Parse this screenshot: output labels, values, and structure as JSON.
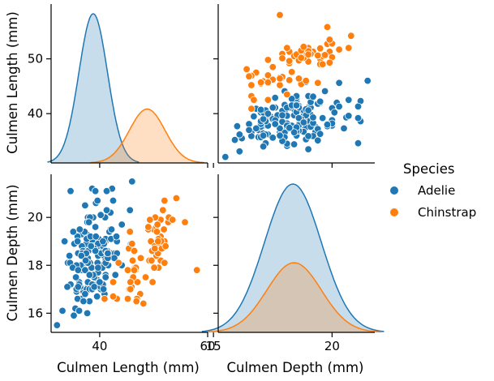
{
  "chart_data": {
    "type": "pairplot",
    "legend": {
      "title": "Species",
      "placement": "right",
      "entries": [
        {
          "name": "Adelie",
          "color": "#1f77b4"
        },
        {
          "name": "Chinstrap",
          "color": "#ff7f0e"
        }
      ]
    },
    "variables": [
      {
        "name": "Culmen Length (mm)",
        "range": [
          31,
          60
        ],
        "ticks": [
          40,
          50
        ],
        "outer_ticks": [
          40,
          60
        ]
      },
      {
        "name": "Culmen Depth (mm)",
        "range": [
          15.2,
          21.8
        ],
        "ticks": [
          16,
          18,
          20
        ],
        "outer_ticks": [
          15,
          20
        ]
      }
    ],
    "panels": [
      {
        "row": 0,
        "col": 0,
        "type": "kde",
        "variable": "Culmen Length (mm)",
        "series": [
          {
            "name": "Adelie",
            "mean": 38.8,
            "sd": 2.65,
            "weight": 1.0
          },
          {
            "name": "Chinstrap",
            "mean": 48.8,
            "sd": 3.3,
            "weight": 0.45
          }
        ]
      },
      {
        "row": 0,
        "col": 1,
        "type": "scatter",
        "x": "Culmen Depth (mm)",
        "y": "Culmen Length (mm)"
      },
      {
        "row": 1,
        "col": 0,
        "type": "scatter",
        "x": "Culmen Length (mm)",
        "y": "Culmen Depth (mm)"
      },
      {
        "row": 1,
        "col": 1,
        "type": "kde",
        "variable": "Culmen Depth (mm)",
        "series": [
          {
            "name": "Adelie",
            "mean": 18.35,
            "sd": 1.2,
            "weight": 1.0
          },
          {
            "name": "Chinstrap",
            "mean": 18.4,
            "sd": 1.15,
            "weight": 0.45
          }
        ]
      }
    ],
    "scatter_points": {
      "Adelie": [
        [
          39.1,
          18.7
        ],
        [
          39.5,
          17.4
        ],
        [
          40.3,
          18.0
        ],
        [
          36.7,
          19.3
        ],
        [
          39.3,
          20.6
        ],
        [
          38.9,
          17.8
        ],
        [
          39.2,
          19.6
        ],
        [
          34.1,
          18.1
        ],
        [
          42.0,
          20.2
        ],
        [
          37.8,
          17.1
        ],
        [
          37.8,
          17.3
        ],
        [
          41.1,
          17.6
        ],
        [
          38.6,
          21.2
        ],
        [
          34.6,
          21.1
        ],
        [
          36.6,
          17.8
        ],
        [
          38.7,
          19.0
        ],
        [
          42.5,
          20.7
        ],
        [
          34.4,
          18.4
        ],
        [
          46.0,
          21.5
        ],
        [
          37.8,
          18.3
        ],
        [
          37.7,
          18.7
        ],
        [
          35.9,
          19.2
        ],
        [
          38.2,
          18.1
        ],
        [
          38.8,
          17.2
        ],
        [
          35.3,
          18.9
        ],
        [
          40.6,
          18.6
        ],
        [
          40.5,
          17.9
        ],
        [
          37.9,
          18.6
        ],
        [
          40.5,
          18.9
        ],
        [
          39.5,
          16.7
        ],
        [
          37.2,
          18.1
        ],
        [
          39.5,
          17.8
        ],
        [
          40.9,
          18.9
        ],
        [
          36.4,
          17.0
        ],
        [
          39.2,
          21.1
        ],
        [
          38.8,
          20.0
        ],
        [
          42.2,
          18.5
        ],
        [
          37.6,
          19.3
        ],
        [
          39.8,
          19.1
        ],
        [
          36.5,
          18.0
        ],
        [
          40.8,
          18.4
        ],
        [
          36.0,
          18.5
        ],
        [
          44.1,
          19.7
        ],
        [
          37.0,
          16.9
        ],
        [
          39.6,
          18.8
        ],
        [
          41.1,
          19.0
        ],
        [
          37.5,
          18.9
        ],
        [
          42.3,
          21.2
        ],
        [
          39.6,
          17.7
        ],
        [
          40.1,
          18.9
        ],
        [
          35.0,
          17.9
        ],
        [
          42.0,
          19.5
        ],
        [
          34.5,
          18.1
        ],
        [
          41.4,
          18.6
        ],
        [
          39.0,
          17.5
        ],
        [
          40.6,
          18.8
        ],
        [
          36.5,
          16.6
        ],
        [
          37.6,
          19.1
        ],
        [
          35.7,
          16.9
        ],
        [
          41.3,
          21.1
        ],
        [
          37.6,
          17.0
        ],
        [
          41.1,
          18.2
        ],
        [
          36.4,
          17.1
        ],
        [
          41.6,
          18.0
        ],
        [
          35.5,
          16.2
        ],
        [
          41.1,
          19.1
        ],
        [
          35.9,
          16.6
        ],
        [
          41.8,
          19.4
        ],
        [
          33.5,
          19.0
        ],
        [
          39.7,
          18.4
        ],
        [
          39.6,
          17.2
        ],
        [
          45.8,
          18.9
        ],
        [
          35.5,
          17.5
        ],
        [
          42.8,
          18.5
        ],
        [
          40.9,
          16.8
        ],
        [
          37.2,
          19.4
        ],
        [
          36.2,
          16.1
        ],
        [
          42.1,
          19.1
        ],
        [
          34.6,
          17.2
        ],
        [
          42.9,
          17.6
        ],
        [
          36.7,
          18.8
        ],
        [
          35.1,
          19.4
        ],
        [
          37.3,
          17.8
        ],
        [
          41.3,
          20.3
        ],
        [
          36.3,
          19.5
        ],
        [
          36.9,
          18.6
        ],
        [
          38.3,
          19.2
        ],
        [
          38.9,
          18.8
        ],
        [
          35.7,
          18.0
        ],
        [
          41.1,
          18.1
        ],
        [
          34.0,
          17.1
        ],
        [
          39.6,
          18.1
        ],
        [
          36.2,
          17.3
        ],
        [
          40.8,
          18.9
        ],
        [
          38.1,
          18.6
        ],
        [
          40.3,
          18.5
        ],
        [
          33.1,
          16.1
        ],
        [
          43.2,
          18.5
        ],
        [
          35.0,
          17.9
        ],
        [
          41.0,
          20.0
        ],
        [
          37.7,
          16.0
        ],
        [
          37.8,
          20.0
        ],
        [
          37.9,
          18.6
        ],
        [
          39.7,
          18.9
        ],
        [
          38.6,
          17.2
        ],
        [
          38.2,
          20.0
        ],
        [
          38.1,
          17.0
        ],
        [
          43.2,
          19.0
        ],
        [
          38.1,
          16.5
        ],
        [
          45.6,
          20.3
        ],
        [
          39.7,
          17.7
        ],
        [
          42.2,
          19.5
        ],
        [
          39.6,
          20.7
        ],
        [
          42.7,
          18.3
        ],
        [
          38.6,
          17.0
        ],
        [
          37.3,
          20.5
        ],
        [
          35.7,
          17.0
        ],
        [
          41.1,
          18.6
        ],
        [
          36.2,
          17.2
        ],
        [
          37.7,
          19.8
        ],
        [
          40.2,
          17.0
        ],
        [
          41.4,
          18.5
        ],
        [
          35.2,
          15.9
        ],
        [
          40.6,
          19.0
        ],
        [
          38.8,
          17.6
        ],
        [
          41.5,
          18.3
        ],
        [
          39.0,
          17.1
        ],
        [
          44.1,
          18.0
        ],
        [
          38.5,
          17.9
        ],
        [
          43.1,
          19.2
        ],
        [
          36.8,
          18.5
        ],
        [
          37.5,
          18.5
        ],
        [
          38.1,
          17.6
        ],
        [
          41.1,
          17.5
        ],
        [
          35.6,
          17.5
        ],
        [
          40.2,
          20.1
        ],
        [
          37.0,
          16.5
        ],
        [
          39.7,
          17.9
        ],
        [
          40.2,
          17.1
        ],
        [
          40.6,
          17.2
        ],
        [
          32.1,
          15.5
        ],
        [
          40.7,
          17.0
        ],
        [
          37.3,
          16.8
        ],
        [
          39.0,
          18.7
        ],
        [
          39.2,
          18.6
        ],
        [
          36.6,
          18.4
        ],
        [
          36.0,
          17.8
        ],
        [
          37.8,
          18.1
        ],
        [
          36.0,
          17.1
        ],
        [
          41.5,
          18.5
        ],
        [
          38.0,
          19.8
        ],
        [
          35.9,
          19.0
        ],
        [
          37.4,
          18.2
        ],
        [
          39.3,
          19.2
        ],
        [
          40.0,
          17.3
        ],
        [
          38.4,
          18.8
        ]
      ],
      "Chinstrap": [
        [
          46.5,
          17.9
        ],
        [
          50.0,
          19.5
        ],
        [
          51.3,
          19.2
        ],
        [
          45.4,
          18.7
        ],
        [
          52.7,
          19.8
        ],
        [
          45.2,
          17.8
        ],
        [
          46.1,
          18.2
        ],
        [
          51.3,
          18.2
        ],
        [
          46.0,
          18.9
        ],
        [
          51.3,
          19.9
        ],
        [
          46.6,
          17.8
        ],
        [
          51.7,
          20.3
        ],
        [
          47.0,
          17.3
        ],
        [
          52.0,
          18.1
        ],
        [
          45.9,
          17.1
        ],
        [
          50.5,
          19.6
        ],
        [
          50.3,
          20.0
        ],
        [
          58.0,
          17.8
        ],
        [
          46.4,
          18.6
        ],
        [
          49.2,
          18.2
        ],
        [
          42.4,
          17.3
        ],
        [
          48.5,
          17.5
        ],
        [
          43.2,
          16.6
        ],
        [
          50.6,
          19.4
        ],
        [
          46.7,
          17.9
        ],
        [
          52.0,
          19.0
        ],
        [
          50.5,
          18.4
        ],
        [
          49.5,
          19.0
        ],
        [
          46.4,
          17.8
        ],
        [
          52.8,
          20.0
        ],
        [
          40.9,
          16.6
        ],
        [
          54.2,
          20.8
        ],
        [
          42.5,
          16.7
        ],
        [
          51.0,
          18.8
        ],
        [
          49.7,
          18.6
        ],
        [
          47.5,
          16.8
        ],
        [
          47.6,
          18.3
        ],
        [
          52.0,
          20.7
        ],
        [
          46.9,
          16.6
        ],
        [
          53.5,
          19.9
        ],
        [
          49.0,
          19.5
        ],
        [
          46.2,
          17.5
        ],
        [
          50.9,
          19.1
        ],
        [
          45.5,
          17.0
        ],
        [
          50.9,
          17.9
        ],
        [
          50.8,
          18.5
        ],
        [
          50.1,
          17.9
        ],
        [
          49.0,
          19.6
        ],
        [
          51.5,
          18.7
        ],
        [
          49.8,
          17.3
        ],
        [
          48.1,
          16.4
        ],
        [
          51.4,
          19.0
        ],
        [
          45.7,
          17.3
        ],
        [
          50.7,
          19.7
        ],
        [
          42.5,
          17.3
        ],
        [
          52.2,
          18.8
        ],
        [
          45.2,
          16.6
        ],
        [
          49.3,
          19.9
        ],
        [
          50.2,
          18.8
        ],
        [
          45.6,
          19.4
        ],
        [
          51.9,
          19.5
        ],
        [
          46.8,
          16.5
        ],
        [
          45.7,
          17.0
        ],
        [
          55.8,
          19.8
        ],
        [
          43.5,
          18.1
        ],
        [
          49.6,
          18.2
        ],
        [
          50.8,
          19.0
        ],
        [
          50.2,
          18.7
        ]
      ]
    }
  }
}
